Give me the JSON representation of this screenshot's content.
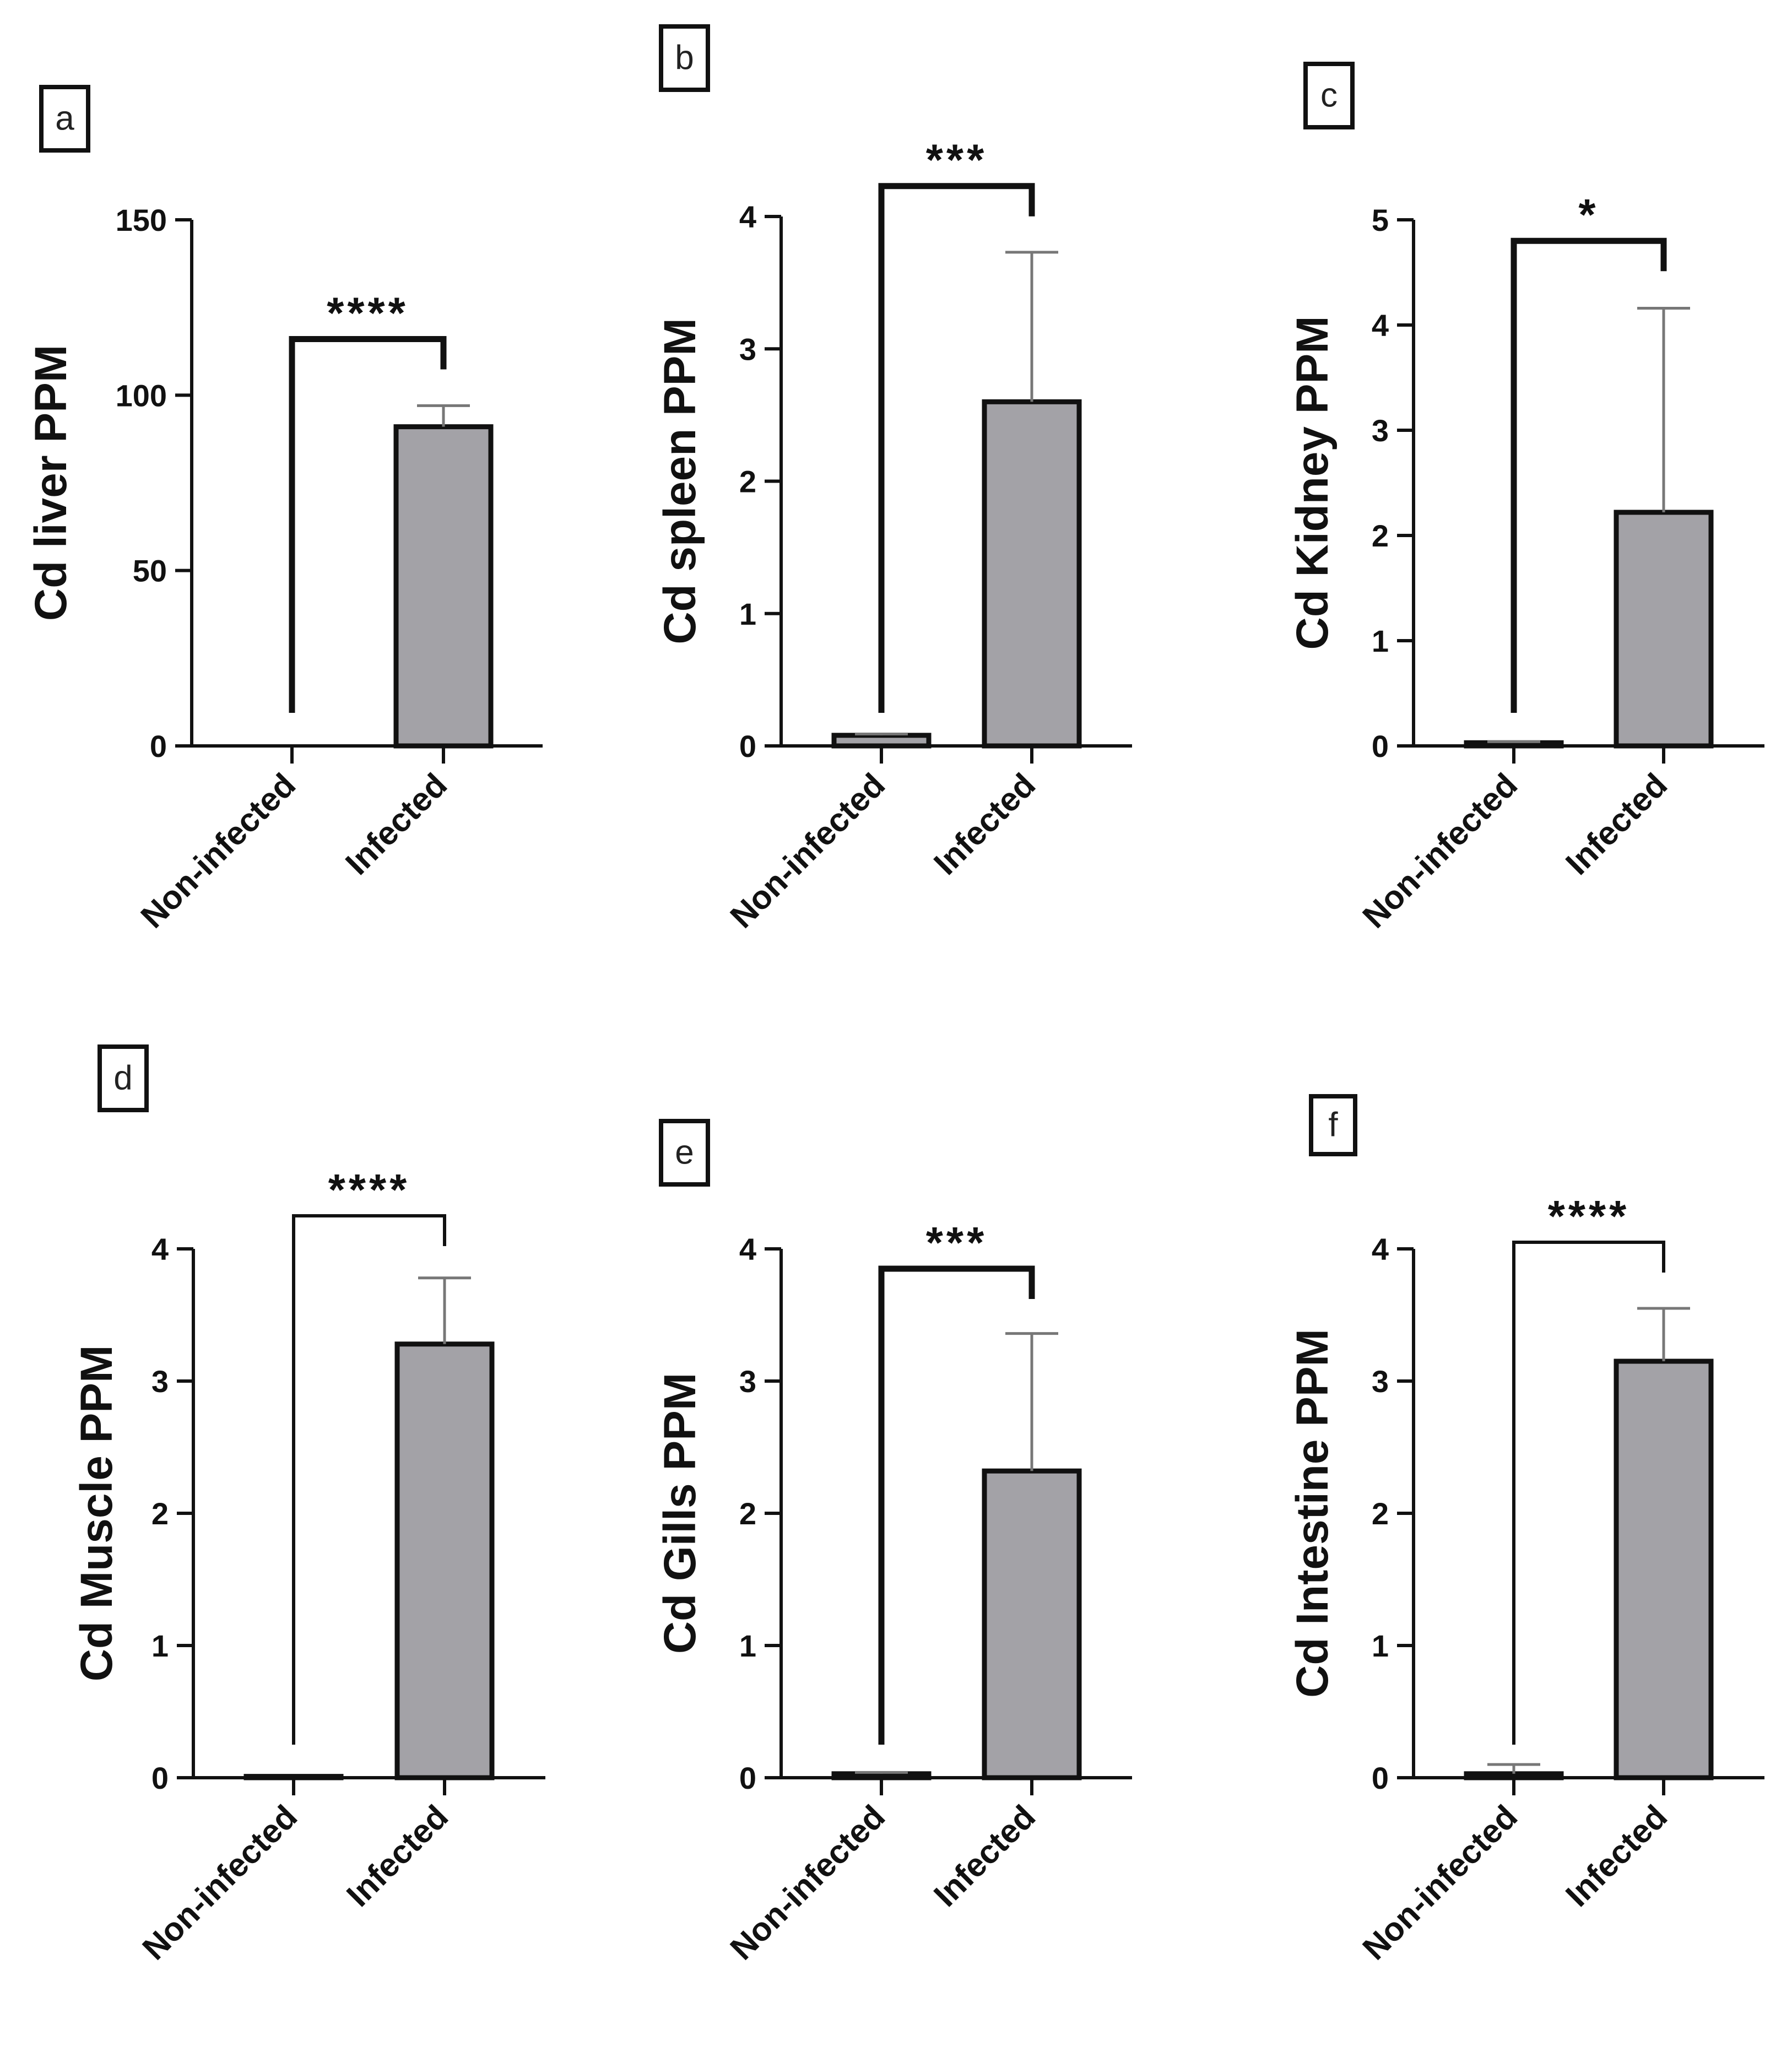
{
  "figure": {
    "background": "#ffffff",
    "bar_color": "#a3a2a7",
    "line_color": "#111111",
    "error_color": "#777777"
  },
  "chart_data": [
    {
      "panel": "a",
      "type": "bar",
      "categories": [
        "Non-infected",
        "Infected"
      ],
      "values": [
        0,
        91
      ],
      "errors": [
        0,
        6
      ],
      "ylabel": "Cd liver PPM",
      "ylim": [
        0,
        150
      ],
      "yticks": [
        0,
        50,
        100,
        150
      ],
      "ytick_labels": [
        "0",
        "50",
        "100",
        "150"
      ],
      "significance": "****",
      "bracket_y": 116
    },
    {
      "panel": "b",
      "type": "bar",
      "categories": [
        "Non-infected",
        "Infected"
      ],
      "values": [
        0.08,
        2.6
      ],
      "errors": [
        0.01,
        1.13
      ],
      "ylabel": "Cd spleen PPM",
      "ylim": [
        0,
        4
      ],
      "yticks": [
        0,
        1,
        2,
        3,
        4
      ],
      "ytick_labels": [
        "0",
        "1",
        "2",
        "3",
        "4"
      ],
      "significance": "***",
      "bracket_y": 4.23
    },
    {
      "panel": "c",
      "type": "bar",
      "categories": [
        "Non-infected",
        "Infected"
      ],
      "values": [
        0.03,
        2.22
      ],
      "errors": [
        0.01,
        1.94
      ],
      "ylabel": "Cd Kidney PPM",
      "ylim": [
        0,
        5
      ],
      "yticks": [
        0,
        1,
        2,
        3,
        4,
        5
      ],
      "ytick_labels": [
        "0",
        "1",
        "2",
        "3",
        "4",
        "5"
      ],
      "significance": "*",
      "bracket_y": 4.8
    },
    {
      "panel": "d",
      "type": "bar",
      "categories": [
        "Non-infected",
        "Infected"
      ],
      "values": [
        0.01,
        3.28
      ],
      "errors": [
        0,
        0.5
      ],
      "ylabel": "Cd Muscle PPM",
      "ylim": [
        0,
        4
      ],
      "yticks": [
        0,
        1,
        2,
        3,
        4
      ],
      "ytick_labels": [
        "0",
        "1",
        "2",
        "3",
        "4"
      ],
      "significance": "****",
      "bracket_y": 4.25
    },
    {
      "panel": "e",
      "type": "bar",
      "categories": [
        "Non-infected",
        "Infected"
      ],
      "values": [
        0.03,
        2.32
      ],
      "errors": [
        0.01,
        1.04
      ],
      "ylabel": "Cd Gills PPM",
      "ylim": [
        0,
        4
      ],
      "yticks": [
        0,
        1,
        2,
        3,
        4
      ],
      "ytick_labels": [
        "0",
        "1",
        "2",
        "3",
        "4"
      ],
      "significance": "***",
      "bracket_y": 3.85
    },
    {
      "panel": "f",
      "type": "bar",
      "categories": [
        "Non-infected",
        "Infected"
      ],
      "values": [
        0.03,
        3.15
      ],
      "errors": [
        0.07,
        0.4
      ],
      "ylabel": "Cd Intestine PPM",
      "ylim": [
        0,
        4
      ],
      "yticks": [
        0,
        1,
        2,
        3,
        4
      ],
      "ytick_labels": [
        "0",
        "1",
        "2",
        "3",
        "4"
      ],
      "significance": "****",
      "bracket_y": 4.05
    }
  ]
}
